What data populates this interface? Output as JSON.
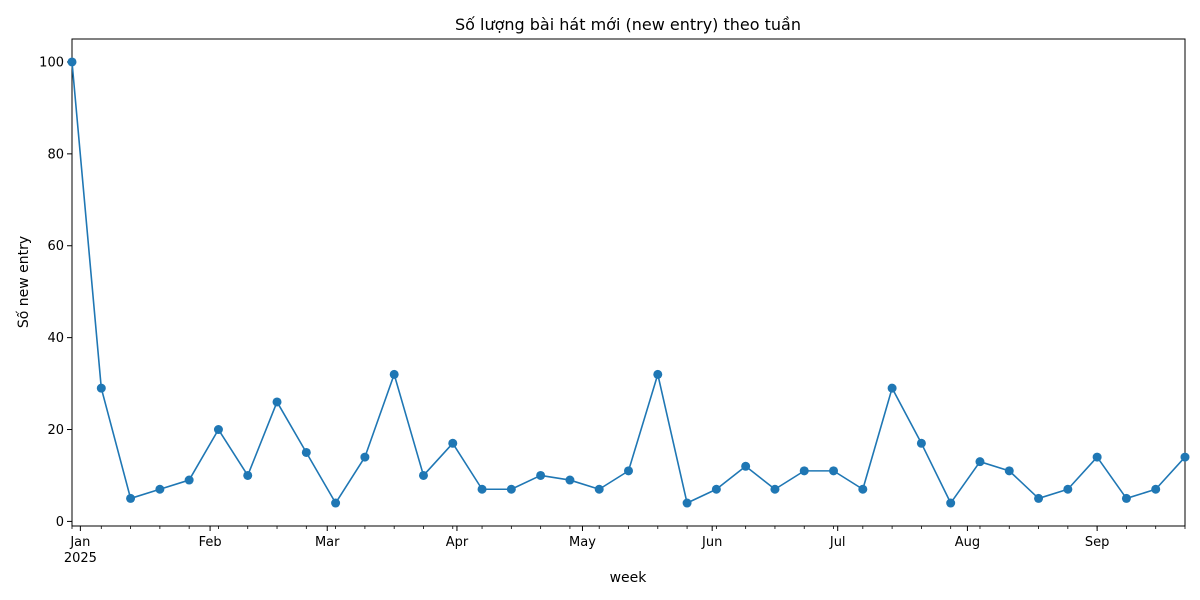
{
  "chart_data": {
    "type": "line",
    "title": "Số lượng bài hát mới (new entry) theo tuần",
    "xlabel": "week",
    "ylabel": "Số new entry",
    "grid": false,
    "ylim": [
      -1,
      105
    ],
    "xlim": [
      "2024-12-30",
      "2025-09-22"
    ],
    "yticks": [
      0,
      20,
      40,
      60,
      80,
      100
    ],
    "x_major_ticks": [
      {
        "label": "Jan",
        "sublabel": "2025",
        "date": "2025-01-01"
      },
      {
        "label": "Feb",
        "date": "2025-02-01"
      },
      {
        "label": "Mar",
        "date": "2025-03-01"
      },
      {
        "label": "Apr",
        "date": "2025-04-01"
      },
      {
        "label": "May",
        "date": "2025-05-01"
      },
      {
        "label": "Jun",
        "date": "2025-06-01"
      },
      {
        "label": "Jul",
        "date": "2025-07-01"
      },
      {
        "label": "Aug",
        "date": "2025-08-01"
      },
      {
        "label": "Sep",
        "date": "2025-09-01"
      }
    ],
    "series": [
      {
        "color": "#1f77b4",
        "marker": "circle",
        "x": [
          "2024-12-30",
          "2025-01-06",
          "2025-01-13",
          "2025-01-20",
          "2025-01-27",
          "2025-02-03",
          "2025-02-10",
          "2025-02-17",
          "2025-02-24",
          "2025-03-03",
          "2025-03-10",
          "2025-03-17",
          "2025-03-24",
          "2025-03-31",
          "2025-04-07",
          "2025-04-14",
          "2025-04-21",
          "2025-04-28",
          "2025-05-05",
          "2025-05-12",
          "2025-05-19",
          "2025-05-26",
          "2025-06-02",
          "2025-06-09",
          "2025-06-16",
          "2025-06-23",
          "2025-06-30",
          "2025-07-07",
          "2025-07-14",
          "2025-07-21",
          "2025-07-28",
          "2025-08-04",
          "2025-08-11",
          "2025-08-18",
          "2025-08-25",
          "2025-09-01",
          "2025-09-08",
          "2025-09-15",
          "2025-09-22"
        ],
        "values": [
          100,
          29,
          5,
          7,
          9,
          20,
          10,
          26,
          15,
          4,
          14,
          32,
          10,
          17,
          7,
          7,
          10,
          9,
          7,
          11,
          32,
          4,
          7,
          12,
          7,
          11,
          11,
          7,
          29,
          17,
          4,
          13,
          11,
          5,
          7,
          14,
          5,
          7,
          14
        ]
      }
    ]
  }
}
